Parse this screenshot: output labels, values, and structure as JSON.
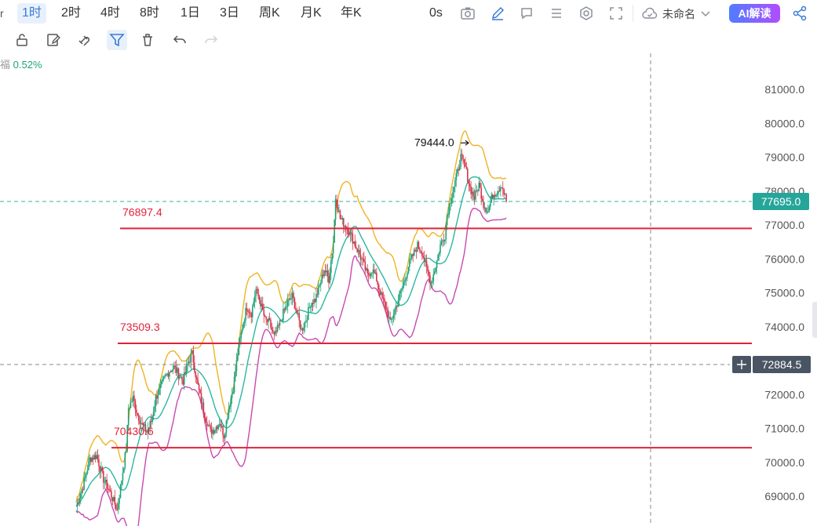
{
  "toolbar": {
    "intervals": [
      "1时",
      "2时",
      "4时",
      "8时",
      "1日",
      "3日",
      "周K",
      "月K",
      "年K"
    ],
    "active_interval": "1时",
    "countdown": "0s",
    "layout_name": "未命名",
    "ai_button": "AI解读"
  },
  "change_text": "0.52%",
  "change_prefix": "福",
  "colors": {
    "up": "#1fa37a",
    "down": "#d9364a",
    "accent": "#3a7bd5",
    "level_line": "#e0223a",
    "bb_upper": "#f0b323",
    "bb_mid": "#2bb7a0",
    "bb_lower": "#c64bb0"
  },
  "chart_data": {
    "type": "candlestick",
    "y_axis_ticks": [
      81000.0,
      80000.0,
      79000.0,
      78000.0,
      77000.0,
      76000.0,
      75000.0,
      74000.0,
      73000.0,
      72000.0,
      71000.0,
      70000.0,
      69000.0
    ],
    "y_axis_tick_labels": [
      "81000.0",
      "80000.0",
      "79000.0",
      "78000.0",
      "77000.0",
      "76000.0",
      "75000.0",
      "74000.0",
      "73000.0",
      "72000.0",
      "71000.0",
      "70000.0",
      "69000.0"
    ],
    "ylim": [
      68250,
      82050
    ],
    "current_price": 77695.0,
    "current_price_label": "77695.0",
    "crosshair_price": 72884.5,
    "crosshair_price_label": "72884.5",
    "high_marker": {
      "value": 79444.0,
      "label": "79444.0"
    },
    "horizontal_levels": [
      {
        "value": 76897.4,
        "label": "76897.4"
      },
      {
        "value": 73509.3,
        "label": "73509.3"
      },
      {
        "value": 70430.6,
        "label": "70430.6"
      }
    ],
    "close_path": [
      [
        0,
        68700
      ],
      [
        6,
        69300
      ],
      [
        12,
        70100
      ],
      [
        18,
        70200
      ],
      [
        24,
        69500
      ],
      [
        30,
        69100
      ],
      [
        36,
        68600
      ],
      [
        40,
        69500
      ],
      [
        44,
        70400
      ],
      [
        46,
        71600
      ],
      [
        50,
        71900
      ],
      [
        54,
        71400
      ],
      [
        58,
        71100
      ],
      [
        62,
        70900
      ],
      [
        66,
        71200
      ],
      [
        70,
        71900
      ],
      [
        74,
        72200
      ],
      [
        78,
        72500
      ],
      [
        82,
        72700
      ],
      [
        86,
        72800
      ],
      [
        90,
        72600
      ],
      [
        94,
        72400
      ],
      [
        98,
        72900
      ],
      [
        102,
        73200
      ],
      [
        106,
        72400
      ],
      [
        110,
        71800
      ],
      [
        114,
        71300
      ],
      [
        118,
        70900
      ],
      [
        122,
        71000
      ],
      [
        126,
        71200
      ],
      [
        130,
        70800
      ],
      [
        134,
        71600
      ],
      [
        138,
        72200
      ],
      [
        142,
        73200
      ],
      [
        146,
        74000
      ],
      [
        150,
        74600
      ],
      [
        154,
        74400
      ],
      [
        158,
        75100
      ],
      [
        162,
        74700
      ],
      [
        166,
        74200
      ],
      [
        170,
        74100
      ],
      [
        174,
        73700
      ],
      [
        178,
        74000
      ],
      [
        182,
        74400
      ],
      [
        186,
        74700
      ],
      [
        190,
        74900
      ],
      [
        194,
        74400
      ],
      [
        198,
        73900
      ],
      [
        202,
        74200
      ],
      [
        206,
        74700
      ],
      [
        210,
        74800
      ],
      [
        214,
        75200
      ],
      [
        218,
        75700
      ],
      [
        222,
        75400
      ],
      [
        226,
        76500
      ],
      [
        228,
        77800
      ],
      [
        232,
        77200
      ],
      [
        236,
        77000
      ],
      [
        240,
        76800
      ],
      [
        244,
        76500
      ],
      [
        248,
        76200
      ],
      [
        252,
        75900
      ],
      [
        256,
        75500
      ],
      [
        260,
        75700
      ],
      [
        264,
        75400
      ],
      [
        268,
        74900
      ],
      [
        272,
        74600
      ],
      [
        276,
        74100
      ],
      [
        280,
        74500
      ],
      [
        284,
        74900
      ],
      [
        288,
        75300
      ],
      [
        292,
        75800
      ],
      [
        296,
        76100
      ],
      [
        300,
        76400
      ],
      [
        304,
        76200
      ],
      [
        308,
        75700
      ],
      [
        312,
        75300
      ],
      [
        316,
        75800
      ],
      [
        320,
        76400
      ],
      [
        324,
        76700
      ],
      [
        326,
        77300
      ],
      [
        330,
        77900
      ],
      [
        334,
        78400
      ],
      [
        338,
        79000
      ],
      [
        342,
        78700
      ],
      [
        346,
        78100
      ],
      [
        350,
        77800
      ],
      [
        354,
        78200
      ],
      [
        358,
        77600
      ],
      [
        362,
        77400
      ],
      [
        366,
        77900
      ],
      [
        370,
        78000
      ],
      [
        374,
        78200
      ],
      [
        378,
        77700
      ]
    ]
  }
}
